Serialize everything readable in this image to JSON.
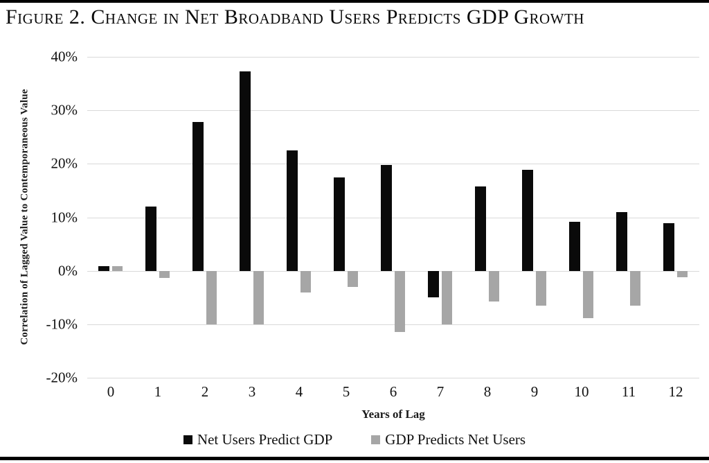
{
  "figure": {
    "title": "Figure 2. Change in Net Broadband Users Predicts GDP Growth"
  },
  "chart_data": {
    "type": "bar",
    "title": "Figure 2. Change in Net Broadband Users Predicts GDP Growth",
    "xlabel": "Years of Lag",
    "ylabel": "Correlation of Lagged Value to Contemporaneous Value",
    "categories": [
      "0",
      "1",
      "2",
      "3",
      "4",
      "5",
      "6",
      "7",
      "8",
      "9",
      "10",
      "11",
      "12"
    ],
    "series": [
      {
        "name": "Net Users Predict GDP",
        "color": "#0a0a0a",
        "values": [
          0.9,
          12.0,
          27.8,
          37.3,
          22.5,
          17.5,
          19.8,
          -5.0,
          15.8,
          18.9,
          9.2,
          11.0,
          8.9
        ]
      },
      {
        "name": "GDP Predicts Net Users",
        "color": "#a6a6a6",
        "values": [
          0.9,
          -1.4,
          -10.0,
          -10.0,
          -4.0,
          -3.0,
          -11.5,
          -10.0,
          -5.7,
          -6.5,
          -8.8,
          -6.5,
          -1.2
        ]
      }
    ],
    "ylim": [
      -20,
      40
    ],
    "yticks": [
      {
        "value": 40,
        "label": "40%"
      },
      {
        "value": 30,
        "label": "30%"
      },
      {
        "value": 20,
        "label": "20%"
      },
      {
        "value": 10,
        "label": "10%"
      },
      {
        "value": 0,
        "label": "0%"
      },
      {
        "value": -10,
        "label": "-10%"
      },
      {
        "value": -20,
        "label": "-20%"
      }
    ],
    "grid": true,
    "gridline_color": "#d9d9d9",
    "legend_position": "bottom"
  }
}
